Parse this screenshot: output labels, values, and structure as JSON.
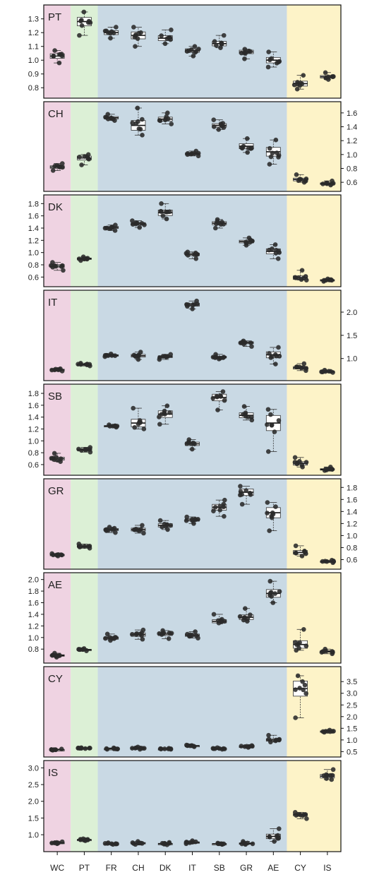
{
  "colors": {
    "group_wc": "#efd3e2",
    "group_pt": "#dcf0d6",
    "group_main": "#c9d9e4",
    "group_islands": "#fdf3c8",
    "point": "#2a2a2a",
    "box_fill": "#ffffff"
  },
  "chart_data": {
    "type": "box",
    "categories": [
      "WC",
      "PT",
      "FR",
      "CH",
      "DK",
      "IT",
      "SB",
      "GR",
      "AE",
      "CY",
      "IS"
    ],
    "category_groups": [
      {
        "categories": [
          "WC"
        ],
        "color": "#efd3e2"
      },
      {
        "categories": [
          "PT"
        ],
        "color": "#dcf0d6"
      },
      {
        "categories": [
          "FR",
          "CH",
          "DK",
          "IT",
          "SB",
          "GR",
          "AE"
        ],
        "color": "#c9d9e4"
      },
      {
        "categories": [
          "CY",
          "IS"
        ],
        "color": "#fdf3c8"
      }
    ],
    "grid": false,
    "panels": [
      {
        "label": "PT",
        "axis_side": "left",
        "ylim": [
          0.75,
          1.36
        ],
        "ticks": [
          0.8,
          0.9,
          1.0,
          1.1,
          1.2,
          1.3
        ],
        "tick_labels": [
          "0.8",
          "0.9",
          "1.0",
          "1.1",
          "1.2",
          "1.3"
        ],
        "medians": [
          1.03,
          1.28,
          1.2,
          1.18,
          1.16,
          1.07,
          1.12,
          1.06,
          1.0,
          0.83,
          0.88
        ],
        "ranges": [
          [
            0.98,
            1.07
          ],
          [
            1.18,
            1.35
          ],
          [
            1.16,
            1.24
          ],
          [
            1.1,
            1.24
          ],
          [
            1.12,
            1.22
          ],
          [
            1.03,
            1.1
          ],
          [
            1.09,
            1.18
          ],
          [
            1.01,
            1.08
          ],
          [
            0.95,
            1.06
          ],
          [
            0.79,
            0.89
          ],
          [
            0.86,
            0.91
          ]
        ]
      },
      {
        "label": "CH",
        "axis_side": "right",
        "ylim": [
          0.52,
          1.68
        ],
        "ticks": [
          0.6,
          0.8,
          1.0,
          1.2,
          1.4,
          1.6
        ],
        "tick_labels": [
          "0.6",
          "0.8",
          "1.0",
          "1.2",
          "1.4",
          "1.6"
        ],
        "medians": [
          0.82,
          0.95,
          1.53,
          1.42,
          1.51,
          1.01,
          1.42,
          1.12,
          1.04,
          0.64,
          0.58
        ],
        "ranges": [
          [
            0.77,
            0.87
          ],
          [
            0.85,
            1.0
          ],
          [
            1.49,
            1.58
          ],
          [
            1.28,
            1.67
          ],
          [
            1.44,
            1.6
          ],
          [
            0.98,
            1.05
          ],
          [
            1.36,
            1.5
          ],
          [
            1.03,
            1.23
          ],
          [
            0.86,
            1.21
          ],
          [
            0.6,
            0.71
          ],
          [
            0.56,
            0.62
          ]
        ]
      },
      {
        "label": "DK",
        "axis_side": "left",
        "ylim": [
          0.5,
          1.85
        ],
        "ticks": [
          0.6,
          0.8,
          1.0,
          1.2,
          1.4,
          1.6,
          1.8
        ],
        "tick_labels": [
          "0.6",
          "0.8",
          "1.0",
          "1.2",
          "1.4",
          "1.6",
          "1.8"
        ],
        "medians": [
          0.78,
          0.9,
          1.41,
          1.47,
          1.65,
          0.97,
          1.48,
          1.18,
          1.02,
          0.59,
          0.55
        ],
        "ranges": [
          [
            0.71,
            0.84
          ],
          [
            0.87,
            0.93
          ],
          [
            1.36,
            1.45
          ],
          [
            1.41,
            1.52
          ],
          [
            1.55,
            1.8
          ],
          [
            0.9,
            1.01
          ],
          [
            1.4,
            1.54
          ],
          [
            1.12,
            1.24
          ],
          [
            0.9,
            1.13
          ],
          [
            0.55,
            0.71
          ],
          [
            0.53,
            0.57
          ]
        ]
      },
      {
        "label": "IT",
        "axis_side": "right",
        "ylim": [
          0.6,
          2.35
        ],
        "ticks": [
          1.0,
          1.5,
          2.0
        ],
        "tick_labels": [
          "1.0",
          "1.5",
          "2.0"
        ],
        "medians": [
          0.76,
          0.87,
          1.07,
          1.06,
          1.04,
          2.16,
          1.03,
          1.34,
          1.08,
          0.8,
          0.72
        ],
        "ranges": [
          [
            0.73,
            0.78
          ],
          [
            0.84,
            0.9
          ],
          [
            1.04,
            1.1
          ],
          [
            0.98,
            1.14
          ],
          [
            0.98,
            1.09
          ],
          [
            2.07,
            2.24
          ],
          [
            0.99,
            1.09
          ],
          [
            1.26,
            1.38
          ],
          [
            0.88,
            1.24
          ],
          [
            0.74,
            0.89
          ],
          [
            0.7,
            0.75
          ]
        ]
      },
      {
        "label": "SB",
        "axis_side": "left",
        "ylim": [
          0.48,
          1.86
        ],
        "ticks": [
          0.6,
          0.8,
          1.0,
          1.2,
          1.4,
          1.6,
          1.8
        ],
        "tick_labels": [
          "0.6",
          "0.8",
          "1.0",
          "1.2",
          "1.4",
          "1.6",
          "1.8"
        ],
        "medians": [
          0.7,
          0.85,
          1.25,
          1.3,
          1.45,
          0.95,
          1.73,
          1.43,
          1.3,
          0.62,
          0.52
        ],
        "ranges": [
          [
            0.65,
            0.79
          ],
          [
            0.81,
            0.89
          ],
          [
            1.23,
            1.27
          ],
          [
            1.2,
            1.55
          ],
          [
            1.28,
            1.59
          ],
          [
            0.86,
            1.02
          ],
          [
            1.52,
            1.83
          ],
          [
            1.35,
            1.58
          ],
          [
            0.82,
            1.53
          ],
          [
            0.56,
            0.72
          ],
          [
            0.5,
            0.56
          ]
        ]
      },
      {
        "label": "GR",
        "axis_side": "right",
        "ylim": [
          0.5,
          1.85
        ],
        "ticks": [
          0.6,
          0.8,
          1.0,
          1.2,
          1.4,
          1.6,
          1.8
        ],
        "tick_labels": [
          "0.6",
          "0.8",
          "1.0",
          "1.2",
          "1.4",
          "1.6",
          "1.8"
        ],
        "medians": [
          0.68,
          0.82,
          1.1,
          1.1,
          1.17,
          1.26,
          1.47,
          1.72,
          1.38,
          0.72,
          0.57
        ],
        "ranges": [
          [
            0.66,
            0.7
          ],
          [
            0.79,
            0.86
          ],
          [
            1.05,
            1.14
          ],
          [
            1.04,
            1.17
          ],
          [
            1.1,
            1.25
          ],
          [
            1.2,
            1.31
          ],
          [
            1.32,
            1.59
          ],
          [
            1.52,
            1.82
          ],
          [
            1.08,
            1.55
          ],
          [
            0.66,
            0.83
          ],
          [
            0.55,
            0.59
          ]
        ]
      },
      {
        "label": "AE",
        "axis_side": "left",
        "ylim": [
          0.62,
          2.02
        ],
        "ticks": [
          0.8,
          1.0,
          1.2,
          1.4,
          1.6,
          1.8,
          2.0
        ],
        "tick_labels": [
          "0.8",
          "1.0",
          "1.2",
          "1.4",
          "1.6",
          "1.8",
          "2.0"
        ],
        "medians": [
          0.69,
          0.79,
          0.99,
          1.05,
          1.06,
          1.04,
          1.28,
          1.35,
          1.76,
          0.88,
          0.76
        ],
        "ranges": [
          [
            0.66,
            0.73
          ],
          [
            0.77,
            0.81
          ],
          [
            0.95,
            1.06
          ],
          [
            0.97,
            1.13
          ],
          [
            0.98,
            1.12
          ],
          [
            0.99,
            1.1
          ],
          [
            1.25,
            1.4
          ],
          [
            1.28,
            1.5
          ],
          [
            1.6,
            1.97
          ],
          [
            0.78,
            1.14
          ],
          [
            0.72,
            0.8
          ]
        ]
      },
      {
        "label": "CY",
        "axis_side": "right",
        "ylim": [
          0.42,
          3.9
        ],
        "ticks": [
          0.5,
          1.0,
          1.5,
          2.0,
          2.5,
          3.0,
          3.5
        ],
        "tick_labels": [
          "0.5",
          "1.0",
          "1.5",
          "2.0",
          "2.5",
          "3.0",
          "3.5"
        ],
        "medians": [
          0.58,
          0.65,
          0.62,
          0.65,
          0.62,
          0.75,
          0.63,
          0.72,
          1.0,
          3.2,
          1.37
        ],
        "ranges": [
          [
            0.56,
            0.61
          ],
          [
            0.63,
            0.67
          ],
          [
            0.6,
            0.66
          ],
          [
            0.6,
            0.7
          ],
          [
            0.6,
            0.64
          ],
          [
            0.71,
            0.78
          ],
          [
            0.6,
            0.67
          ],
          [
            0.68,
            0.76
          ],
          [
            0.91,
            1.2
          ],
          [
            1.95,
            3.75
          ],
          [
            1.33,
            1.42
          ]
        ]
      },
      {
        "label": "IS",
        "axis_side": "left",
        "ylim": [
          0.6,
          3.05
        ],
        "ticks": [
          1.0,
          1.5,
          2.0,
          2.5,
          3.0
        ],
        "tick_labels": [
          "1.0",
          "1.5",
          "2.0",
          "2.5",
          "3.0"
        ],
        "medians": [
          0.76,
          0.85,
          0.73,
          0.75,
          0.73,
          0.77,
          0.73,
          0.74,
          0.95,
          1.6,
          2.75
        ],
        "ranges": [
          [
            0.73,
            0.79
          ],
          [
            0.82,
            0.88
          ],
          [
            0.71,
            0.76
          ],
          [
            0.71,
            0.8
          ],
          [
            0.7,
            0.77
          ],
          [
            0.73,
            0.82
          ],
          [
            0.71,
            0.75
          ],
          [
            0.71,
            0.8
          ],
          [
            0.8,
            1.18
          ],
          [
            1.48,
            1.67
          ],
          [
            2.65,
            2.95
          ]
        ]
      }
    ]
  }
}
